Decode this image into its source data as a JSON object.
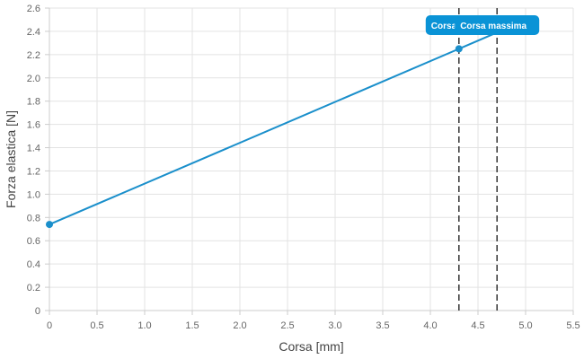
{
  "chart_data": {
    "type": "line",
    "title": "",
    "xlabel": "Corsa [mm]",
    "ylabel": "Forza elastica [N]",
    "xlim": [
      0,
      5.5
    ],
    "ylim": [
      0,
      2.6
    ],
    "xticks": [
      "0",
      "0.5",
      "1.0",
      "1.5",
      "2.0",
      "2.5",
      "3.0",
      "3.5",
      "4.0",
      "4.5",
      "5.0",
      "5.5"
    ],
    "yticks": [
      "0",
      "0.2",
      "0.4",
      "0.6",
      "0.8",
      "1.0",
      "1.2",
      "1.4",
      "1.6",
      "1.8",
      "2.0",
      "2.2",
      "2.4",
      "2.6"
    ],
    "grid": true,
    "series": [
      {
        "color": "#1a8fcb",
        "x": [
          0,
          4.7
        ],
        "y": [
          0.74,
          2.39
        ],
        "points": [
          {
            "x": 0,
            "y": 0.74
          },
          {
            "x": 4.3,
            "y": 2.25
          }
        ]
      }
    ],
    "markers": [
      {
        "x": 4.3,
        "label": "Corsa di"
      },
      {
        "x": 4.7,
        "label": "Corsa massima"
      }
    ],
    "label_color": "#0a93d6"
  }
}
